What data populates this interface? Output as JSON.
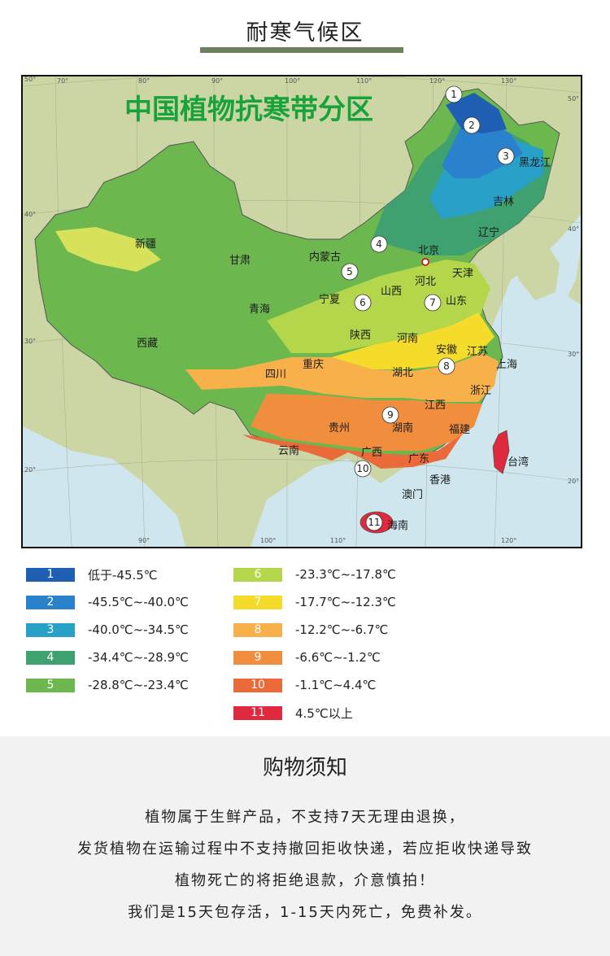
{
  "header": {
    "title": "耐寒气候区"
  },
  "map": {
    "title": "中国植物抗寒带分区",
    "top_longitudes": [
      "70°",
      "80°",
      "90°",
      "100°",
      "110°",
      "120°",
      "130°"
    ],
    "bottom_longitudes": [
      "90°",
      "100°",
      "110°",
      "120°"
    ],
    "left_latitudes": [
      "50°",
      "40°",
      "30°",
      "20°"
    ],
    "right_latitudes": [
      "50°",
      "40°",
      "30°",
      "20°"
    ],
    "regions": [
      "黑龙江",
      "吉林",
      "辽宁",
      "北京",
      "天津",
      "河北",
      "山东",
      "内蒙古",
      "新疆",
      "甘肃",
      "宁夏",
      "山西",
      "青海",
      "陕西",
      "河南",
      "江苏",
      "上海",
      "安徽",
      "西藏",
      "四川",
      "重庆",
      "湖北",
      "浙江",
      "江西",
      "贵州",
      "湖南",
      "福建",
      "台湾",
      "云南",
      "广西",
      "广东",
      "香港",
      "澳门",
      "海南"
    ],
    "zone_markers": [
      "1",
      "2",
      "3",
      "4",
      "5",
      "6",
      "7",
      "8",
      "9",
      "10",
      "11"
    ]
  },
  "legend": [
    {
      "zone": "1",
      "range": "低于-45.5℃",
      "color": "#1f5fb3"
    },
    {
      "zone": "2",
      "range": "-45.5℃~-40.0℃",
      "color": "#2b82cc"
    },
    {
      "zone": "3",
      "range": "-40.0℃~-34.5℃",
      "color": "#28a0c8"
    },
    {
      "zone": "4",
      "range": "-34.4℃~-28.9℃",
      "color": "#3fa070"
    },
    {
      "zone": "5",
      "range": "-28.8℃~-23.4℃",
      "color": "#6cb84f"
    },
    {
      "zone": "6",
      "range": "-23.3℃~-17.8℃",
      "color": "#b4d64a"
    },
    {
      "zone": "7",
      "range": "-17.7℃~-12.3℃",
      "color": "#f5dc2a"
    },
    {
      "zone": "8",
      "range": "-12.2℃~-6.7℃",
      "color": "#f7b04a"
    },
    {
      "zone": "9",
      "range": "-6.6℃~-1.2℃",
      "color": "#f18e3e"
    },
    {
      "zone": "10",
      "range": "-1.1℃~4.4℃",
      "color": "#ea6a3a"
    },
    {
      "zone": "11",
      "range": "4.5℃以上",
      "color": "#e0283f"
    }
  ],
  "notice": {
    "title": "购物须知",
    "lines": [
      "植物属于生鲜产品，不支持7天无理由退换，",
      "发货植物在运输过程中不支持撤回拒收快递，若应拒收快递导致",
      "植物死亡的将拒绝退款，介意慎拍！",
      "我们是15天包存活，1-15天内死亡，免费补发。"
    ]
  }
}
